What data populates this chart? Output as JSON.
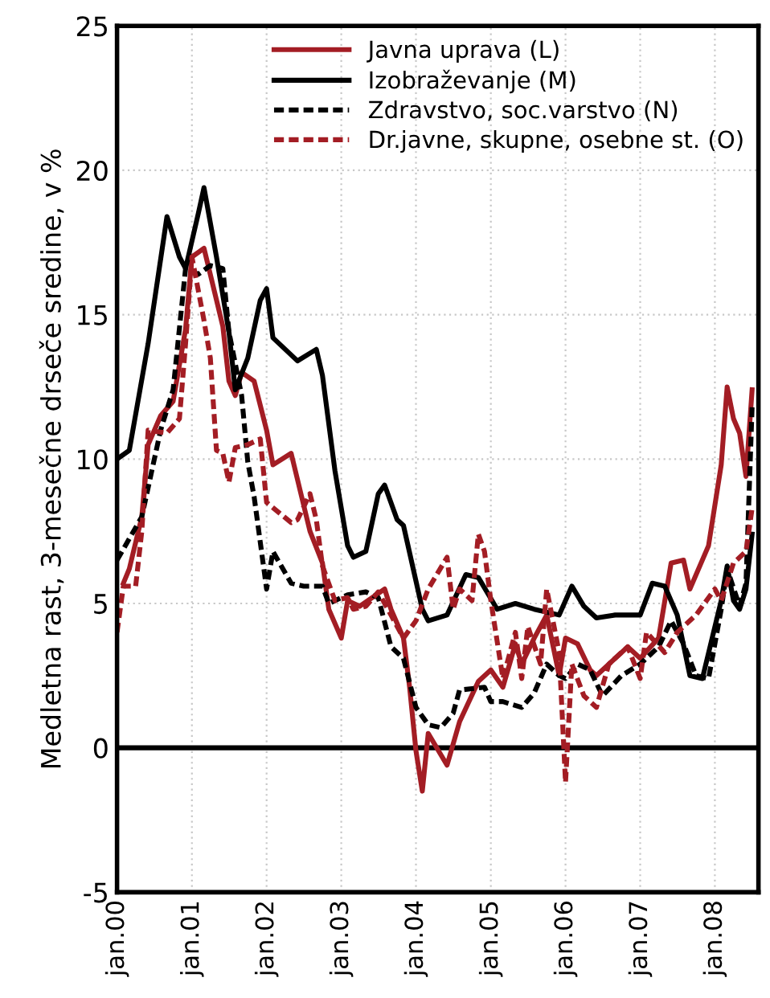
{
  "chart_data": {
    "type": "line",
    "ylabel": "Medletna rast, 3-mesečne drseče sredine, v %",
    "xlim": [
      "2000-01",
      "2008-08"
    ],
    "ylim": [
      -5,
      25
    ],
    "yticks": [
      -5,
      0,
      5,
      10,
      15,
      20,
      25
    ],
    "xticks": [
      {
        "value": "2000-01",
        "label": "jan.00"
      },
      {
        "value": "2001-01",
        "label": "jan.01"
      },
      {
        "value": "2002-01",
        "label": "jan.02"
      },
      {
        "value": "2003-01",
        "label": "jan.03"
      },
      {
        "value": "2004-01",
        "label": "jan.04"
      },
      {
        "value": "2005-01",
        "label": "jan.05"
      },
      {
        "value": "2006-01",
        "label": "jan.06"
      },
      {
        "value": "2007-01",
        "label": "jan.07"
      },
      {
        "value": "2008-01",
        "label": "jan.08"
      }
    ],
    "grid": true,
    "legend": "top right",
    "ref_lines": [
      {
        "axis": "y",
        "value": 0,
        "color": "#000000"
      }
    ],
    "series": [
      {
        "name": "Javna uprava (L)",
        "color": "#a31d24",
        "line_style": "solid",
        "x": [
          "2000-02",
          "2000-03",
          "2000-05",
          "2000-06",
          "2000-08",
          "2000-10",
          "2000-12",
          "2001-01",
          "2001-03",
          "2001-06",
          "2001-07",
          "2001-08",
          "2001-09",
          "2001-11",
          "2002-01",
          "2002-02",
          "2002-05",
          "2002-08",
          "2002-10",
          "2002-11",
          "2003-01",
          "2003-02",
          "2003-04",
          "2003-06",
          "2003-08",
          "2003-09",
          "2003-11",
          "2003-12",
          "2004-01",
          "2004-02",
          "2004-03",
          "2004-06",
          "2004-08",
          "2004-11",
          "2005-01",
          "2005-03",
          "2005-05",
          "2005-06",
          "2005-08",
          "2005-10",
          "2005-12",
          "2006-01",
          "2006-03",
          "2006-05",
          "2006-06",
          "2006-08",
          "2006-11",
          "2007-01",
          "2007-04",
          "2007-06",
          "2007-08",
          "2007-09",
          "2007-12",
          "2008-02",
          "2008-03",
          "2008-04",
          "2008-05",
          "2008-06",
          "2008-07"
        ],
        "values": [
          5.7,
          6.2,
          8,
          10.5,
          11.5,
          12,
          14.5,
          17.0,
          17.3,
          14.6,
          12.7,
          12.2,
          13.0,
          12.7,
          11.0,
          9.8,
          10.2,
          7.5,
          6.4,
          4.8,
          3.8,
          5.1,
          4.9,
          5.2,
          5.5,
          4.8,
          3.8,
          2.1,
          -0.1,
          -1.5,
          0.5,
          -0.6,
          0.9,
          2.3,
          2.7,
          2.1,
          3.6,
          2.9,
          3.8,
          4.6,
          2.5,
          3.8,
          3.6,
          2.7,
          2.5,
          2.9,
          3.5,
          3.1,
          3.8,
          6.4,
          6.5,
          5.5,
          7.0,
          9.8,
          12.5,
          11.4,
          10.9,
          9.4,
          12.4
        ]
      },
      {
        "name": "Izobraževanje (M)",
        "color": "#000000",
        "line_style": "solid",
        "x": [
          "2000-01",
          "2000-03",
          "2000-06",
          "2000-09",
          "2000-11",
          "2000-12",
          "2001-02",
          "2001-03",
          "2001-05",
          "2001-07",
          "2001-08",
          "2001-10",
          "2001-12",
          "2002-01",
          "2002-02",
          "2002-06",
          "2002-09",
          "2002-10",
          "2002-12",
          "2003-02",
          "2003-03",
          "2003-05",
          "2003-07",
          "2003-08",
          "2003-10",
          "2003-11",
          "2004-02",
          "2004-03",
          "2004-06",
          "2004-09",
          "2004-11",
          "2005-02",
          "2005-05",
          "2005-08",
          "2005-12",
          "2006-02",
          "2006-04",
          "2006-06",
          "2006-09",
          "2007-01",
          "2007-03",
          "2007-05",
          "2007-07",
          "2007-09",
          "2007-11",
          "2008-02",
          "2008-03",
          "2008-04",
          "2008-05",
          "2008-06",
          "2008-07"
        ],
        "values": [
          10.0,
          10.3,
          14.0,
          18.4,
          17.0,
          16.6,
          18.5,
          19.4,
          17.0,
          14.4,
          12.4,
          13.5,
          15.5,
          15.9,
          14.2,
          13.4,
          13.8,
          12.9,
          9.6,
          7.0,
          6.6,
          6.8,
          8.8,
          9.1,
          7.9,
          7.7,
          4.8,
          4.4,
          4.6,
          6.0,
          5.9,
          4.8,
          5.0,
          4.8,
          4.6,
          5.6,
          4.9,
          4.5,
          4.6,
          4.6,
          5.7,
          5.6,
          4.6,
          2.5,
          2.4,
          5.1,
          6.3,
          5.1,
          4.8,
          5.5,
          7.4
        ]
      },
      {
        "name": "Zdravstvo, soc.varstvo (N)",
        "color": "#000000",
        "line_style": "dashed",
        "x": [
          "2000-01",
          "2000-05",
          "2000-08",
          "2000-10",
          "2000-12",
          "2001-02",
          "2001-04",
          "2001-06",
          "2001-07",
          "2001-09",
          "2001-10",
          "2001-11",
          "2002-01",
          "2002-02",
          "2002-05",
          "2002-07",
          "2002-10",
          "2002-11",
          "2003-02",
          "2003-05",
          "2003-07",
          "2003-09",
          "2003-11",
          "2004-01",
          "2004-03",
          "2004-05",
          "2004-07",
          "2004-08",
          "2004-12",
          "2005-01",
          "2005-03",
          "2005-06",
          "2005-08",
          "2005-10",
          "2005-12",
          "2006-01",
          "2006-03",
          "2006-05",
          "2006-07",
          "2006-10",
          "2007-01",
          "2007-04",
          "2007-06",
          "2007-08",
          "2007-10",
          "2007-12",
          "2008-02",
          "2008-03",
          "2008-05",
          "2008-06",
          "2008-07"
        ],
        "values": [
          6.5,
          8,
          11,
          12.4,
          16.6,
          16.4,
          16.7,
          16.6,
          14.4,
          12.2,
          9.9,
          8.7,
          5.5,
          6.8,
          5.7,
          5.6,
          5.6,
          5.0,
          5.3,
          5.4,
          5.2,
          3.5,
          3.1,
          1.4,
          0.8,
          0.7,
          1.2,
          2.0,
          2.1,
          1.6,
          1.6,
          1.4,
          1.9,
          2.9,
          2.5,
          2.4,
          2.9,
          2.7,
          1.8,
          2.5,
          2.9,
          3.5,
          4.4,
          3.6,
          2.5,
          2.4,
          4.8,
          6.2,
          4.9,
          5.7,
          11.8
        ]
      },
      {
        "name": "Dr.javne, skupne, osebne st. (O)",
        "color": "#a31d24",
        "line_style": "dashed",
        "x": [
          "2000-01",
          "2000-02",
          "2000-04",
          "2000-05",
          "2000-06",
          "2000-09",
          "2000-11",
          "2000-12",
          "2001-01",
          "2001-03",
          "2001-04",
          "2001-05",
          "2001-06",
          "2001-07",
          "2001-08",
          "2001-10",
          "2001-12",
          "2002-01",
          "2002-05",
          "2002-06",
          "2002-08",
          "2002-09",
          "2002-10",
          "2002-12",
          "2003-02",
          "2003-03",
          "2003-05",
          "2003-07",
          "2003-09",
          "2003-11",
          "2004-01",
          "2004-03",
          "2004-06",
          "2004-07",
          "2004-08",
          "2004-10",
          "2004-11",
          "2004-12",
          "2005-01",
          "2005-03",
          "2005-05",
          "2005-06",
          "2005-07",
          "2005-09",
          "2005-10",
          "2005-12",
          "2006-01",
          "2006-02",
          "2006-04",
          "2006-06",
          "2006-08",
          "2006-11",
          "2007-01",
          "2007-02",
          "2007-05",
          "2007-07",
          "2007-10",
          "2008-01",
          "2008-02",
          "2008-04",
          "2008-06",
          "2008-07"
        ],
        "values": [
          4.0,
          5.6,
          5.6,
          7.5,
          11.0,
          10.9,
          11.4,
          14.0,
          17.0,
          14.8,
          13.5,
          10.3,
          10.2,
          9.2,
          10.4,
          10.5,
          10.7,
          8.5,
          7.8,
          7.9,
          8.8,
          7.9,
          6.3,
          5.1,
          5.2,
          4.8,
          4.9,
          5.4,
          4.6,
          3.8,
          4.4,
          5.5,
          6.6,
          4.8,
          5.5,
          5.1,
          7.4,
          6.8,
          5.1,
          2.4,
          4.0,
          2.4,
          4.2,
          2.9,
          5.5,
          3.3,
          -1.2,
          2.9,
          1.8,
          1.4,
          2.9,
          3.5,
          2.4,
          4.0,
          3.3,
          4.0,
          4.6,
          5.5,
          5.1,
          6.4,
          6.8,
          8.3
        ]
      }
    ]
  }
}
